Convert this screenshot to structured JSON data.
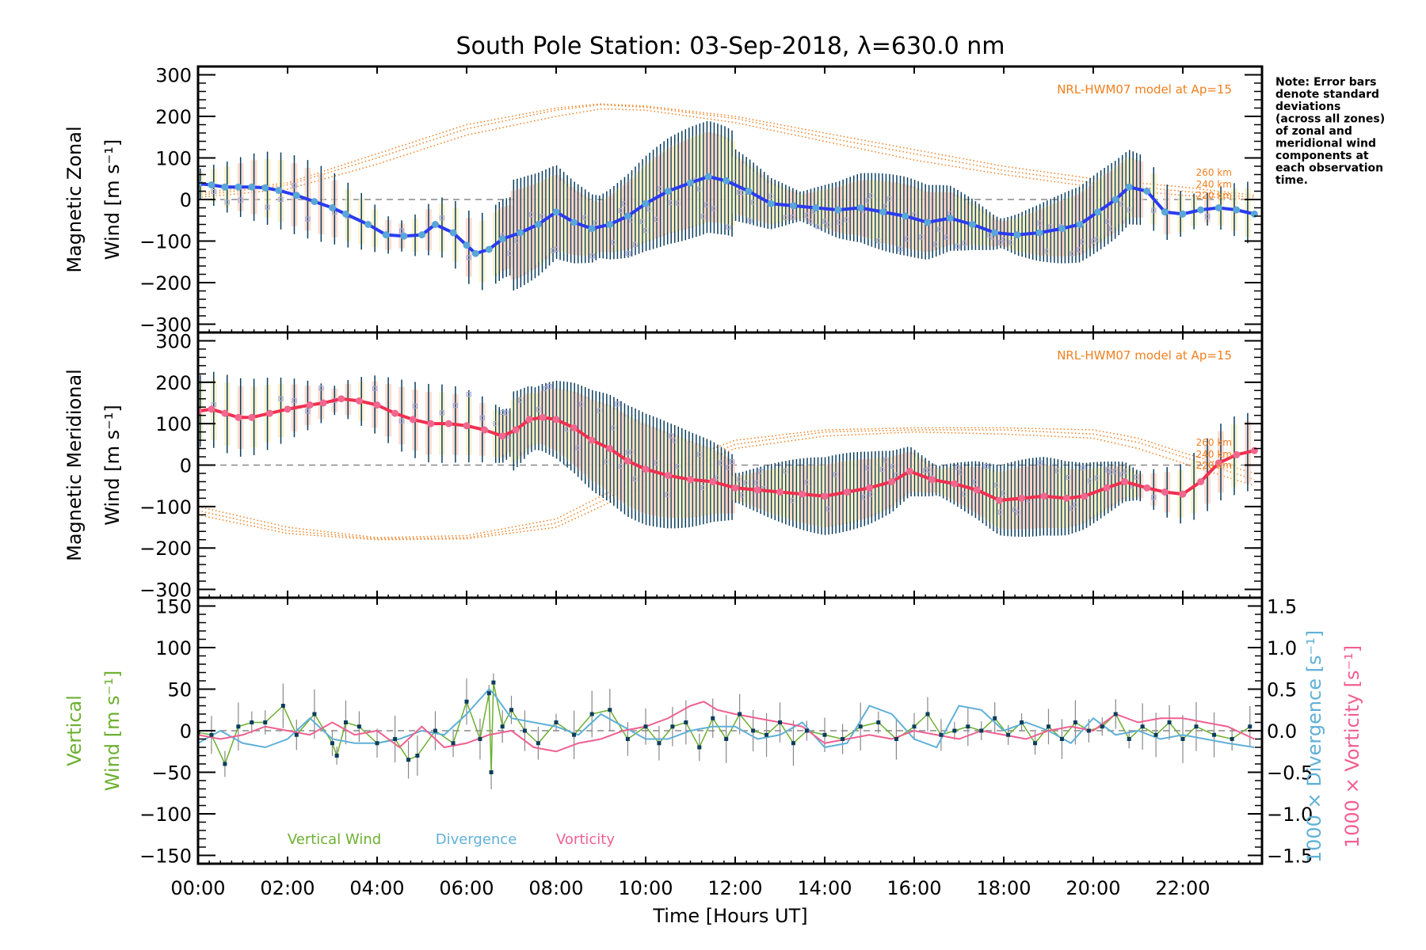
{
  "chart_data": [
    {
      "type": "line",
      "panel": "zonal",
      "title": "South Pole Station: 03-Sep-2018, λ=630.0 nm",
      "ylabel_line1": "Magnetic Zonal",
      "ylabel_line2": "Wind [m s⁻¹]",
      "ylim": [
        -320,
        320
      ],
      "yticks": [
        300,
        200,
        100,
        0,
        -100,
        -200,
        -300
      ],
      "model_label": "NRL-HWM07 model at Ap=15",
      "altitude_labels": [
        "260 km",
        "240 km",
        "220 km"
      ],
      "series": [
        {
          "name": "Magnetic Zonal Wind (mean)",
          "color": "#2a3cf0",
          "marker_color": "#5aa6d8",
          "x": [
            0,
            0.3,
            0.6,
            0.9,
            1.2,
            1.5,
            1.8,
            2.2,
            2.6,
            3.0,
            3.3,
            3.8,
            4.2,
            4.6,
            5.0,
            5.3,
            5.7,
            6.0,
            6.2,
            6.5,
            6.8,
            7.2,
            7.6,
            8.0,
            8.4,
            8.8,
            9.2,
            9.6,
            10.0,
            10.5,
            11.0,
            11.4,
            11.8,
            12.3,
            12.8,
            13.3,
            13.8,
            14.3,
            14.8,
            15.3,
            15.8,
            16.3,
            16.8,
            17.3,
            17.8,
            18.3,
            18.8,
            19.3,
            19.7,
            20.1,
            20.5,
            20.8,
            21.2,
            21.6,
            22.0,
            22.4,
            22.8,
            23.2,
            23.6
          ],
          "y": [
            38,
            35,
            30,
            30,
            30,
            28,
            22,
            10,
            -5,
            -20,
            -35,
            -60,
            -85,
            -88,
            -85,
            -60,
            -80,
            -110,
            -130,
            -120,
            -95,
            -80,
            -60,
            -30,
            -55,
            -70,
            -60,
            -40,
            -10,
            20,
            40,
            55,
            45,
            20,
            -10,
            -15,
            -20,
            -25,
            -20,
            -30,
            -40,
            -55,
            -45,
            -60,
            -80,
            -85,
            -80,
            -70,
            -60,
            -30,
            0,
            30,
            20,
            -30,
            -35,
            -25,
            -20,
            -25,
            -35
          ]
        },
        {
          "name": "NRL-HWM07 260 km",
          "color": "#f08020",
          "x": [
            0,
            2,
            4,
            6,
            8,
            9,
            10,
            12,
            14,
            16,
            18,
            20,
            22,
            23.6
          ],
          "y": [
            15,
            40,
            110,
            180,
            220,
            230,
            225,
            200,
            160,
            120,
            80,
            50,
            30,
            10
          ]
        },
        {
          "name": "NRL-HWM07 240 km",
          "color": "#f08020",
          "x": [
            0,
            2,
            4,
            6,
            8,
            9,
            10,
            12,
            14,
            16,
            18,
            20,
            22,
            23.6
          ],
          "y": [
            10,
            35,
            100,
            170,
            215,
            228,
            222,
            195,
            150,
            110,
            70,
            40,
            20,
            5
          ]
        },
        {
          "name": "NRL-HWM07 220 km",
          "color": "#f08020",
          "x": [
            0,
            2,
            4,
            6,
            8,
            9,
            10,
            12,
            14,
            16,
            18,
            20,
            22,
            23.6
          ],
          "y": [
            5,
            25,
            85,
            155,
            200,
            218,
            215,
            185,
            140,
            95,
            60,
            30,
            10,
            0
          ]
        }
      ]
    },
    {
      "type": "line",
      "panel": "meridional",
      "ylabel_line1": "Magnetic Meridional",
      "ylabel_line2": "Wind [m s⁻¹]",
      "ylim": [
        -320,
        320
      ],
      "yticks": [
        300,
        200,
        100,
        0,
        -100,
        -200,
        -300
      ],
      "model_label": "NRL-HWM07 model at Ap=15",
      "altitude_labels": [
        "260 km",
        "240 km",
        "220 km"
      ],
      "series": [
        {
          "name": "Magnetic Meridional Wind (mean)",
          "color": "#f03050",
          "marker_color": "#f06890",
          "x": [
            0,
            0.3,
            0.6,
            0.9,
            1.2,
            1.6,
            2.0,
            2.5,
            2.8,
            3.2,
            3.6,
            4.0,
            4.4,
            4.8,
            5.2,
            5.6,
            6.0,
            6.4,
            6.8,
            7.1,
            7.4,
            7.7,
            8.0,
            8.4,
            8.8,
            9.2,
            9.6,
            10.0,
            10.5,
            11.0,
            11.5,
            12.0,
            12.5,
            13.0,
            13.5,
            14.0,
            14.5,
            15.0,
            15.5,
            15.9,
            16.4,
            16.9,
            17.4,
            17.9,
            18.4,
            18.9,
            19.4,
            19.8,
            20.3,
            20.7,
            21.2,
            21.6,
            22.0,
            22.4,
            22.8,
            23.2,
            23.6
          ],
          "y": [
            130,
            135,
            125,
            115,
            115,
            125,
            135,
            145,
            150,
            160,
            155,
            145,
            125,
            110,
            100,
            100,
            95,
            85,
            70,
            85,
            110,
            115,
            110,
            90,
            60,
            40,
            10,
            -10,
            -25,
            -35,
            -40,
            -55,
            -60,
            -65,
            -70,
            -75,
            -65,
            -55,
            -40,
            -15,
            -35,
            -45,
            -60,
            -85,
            -80,
            -75,
            -80,
            -75,
            -55,
            -40,
            -55,
            -65,
            -70,
            -40,
            5,
            25,
            35
          ]
        },
        {
          "name": "NRL-HWM07 260 km",
          "color": "#f08020",
          "x": [
            0,
            2,
            4,
            6,
            8,
            10,
            12,
            14,
            16,
            18,
            20,
            21,
            22,
            23.6
          ],
          "y": [
            -100,
            -150,
            -175,
            -170,
            -130,
            -20,
            60,
            85,
            90,
            90,
            85,
            65,
            30,
            -20
          ]
        },
        {
          "name": "NRL-HWM07 240 km",
          "color": "#f08020",
          "x": [
            0,
            2,
            4,
            6,
            8,
            10,
            12,
            14,
            16,
            18,
            20,
            21,
            22,
            23.6
          ],
          "y": [
            -110,
            -158,
            -178,
            -175,
            -140,
            -35,
            50,
            80,
            85,
            85,
            75,
            55,
            20,
            -35
          ]
        },
        {
          "name": "NRL-HWM07 220 km",
          "color": "#f08020",
          "x": [
            0,
            2,
            4,
            6,
            8,
            10,
            12,
            14,
            16,
            18,
            20,
            21,
            22,
            23.6
          ],
          "y": [
            -120,
            -165,
            -180,
            -178,
            -150,
            -50,
            40,
            70,
            80,
            75,
            65,
            40,
            5,
            -50
          ]
        }
      ]
    },
    {
      "type": "line",
      "panel": "vertical",
      "ylabel_line1": "Vertical",
      "ylabel_line2": "Wind [m s⁻¹]",
      "ylim": [
        -160,
        160
      ],
      "yticks": [
        150,
        100,
        50,
        0,
        -50,
        -100,
        -150
      ],
      "y2label_div": "1000 × Divergence [s⁻¹]",
      "y2label_vort": "1000 × Vorticity [s⁻¹]",
      "y2lim": [
        -1.6,
        1.6
      ],
      "y2ticks": [
        "1.5",
        "1.0",
        "0.5",
        "0.0",
        "−0.5",
        "−1.0",
        "−1.5"
      ],
      "legend": [
        {
          "label": "Vertical Wind",
          "color": "#6cb030"
        },
        {
          "label": "Divergence",
          "color": "#60b0d8"
        },
        {
          "label": "Vorticity",
          "color": "#f06090"
        }
      ],
      "series": [
        {
          "name": "Vertical Wind",
          "color": "#6cb030",
          "x": [
            0,
            0.3,
            0.6,
            0.9,
            1.2,
            1.5,
            1.9,
            2.2,
            2.6,
            3.0,
            3.1,
            3.3,
            3.6,
            4.0,
            4.4,
            4.7,
            4.9,
            5.3,
            5.7,
            6.0,
            6.3,
            6.5,
            6.55,
            6.6,
            6.8,
            7.0,
            7.3,
            7.6,
            8.0,
            8.4,
            8.8,
            9.2,
            9.6,
            10.0,
            10.3,
            10.6,
            10.9,
            11.2,
            11.5,
            11.8,
            12.1,
            12.4,
            12.7,
            13.0,
            13.3,
            13.6,
            14.0,
            14.4,
            14.8,
            15.2,
            15.6,
            16.0,
            16.3,
            16.6,
            16.9,
            17.2,
            17.5,
            17.8,
            18.1,
            18.4,
            18.7,
            19.0,
            19.3,
            19.6,
            19.9,
            20.2,
            20.5,
            20.8,
            21.1,
            21.4,
            21.7,
            22.0,
            22.3,
            22.7,
            23.1,
            23.5
          ],
          "y": [
            -2,
            -5,
            -40,
            5,
            10,
            10,
            30,
            -5,
            20,
            -15,
            -30,
            10,
            5,
            -15,
            -10,
            -35,
            -30,
            0,
            -15,
            35,
            -10,
            45,
            -50,
            58,
            5,
            25,
            0,
            -15,
            10,
            -5,
            20,
            25,
            -10,
            5,
            -15,
            5,
            10,
            -20,
            15,
            -10,
            20,
            0,
            -5,
            10,
            -15,
            0,
            -5,
            -10,
            5,
            10,
            -10,
            5,
            20,
            -5,
            0,
            5,
            0,
            15,
            -5,
            10,
            -15,
            5,
            -10,
            10,
            0,
            5,
            20,
            -10,
            5,
            -5,
            10,
            -10,
            5,
            -5,
            -10,
            5
          ]
        },
        {
          "name": "Divergence (×1000)",
          "color": "#60b0d8",
          "axis": "right",
          "x": [
            0,
            0.5,
            1.0,
            1.5,
            2.0,
            2.5,
            3.0,
            3.5,
            4.0,
            4.5,
            5.0,
            5.5,
            6.0,
            6.5,
            6.6,
            7.0,
            7.5,
            8.0,
            8.5,
            9.0,
            9.5,
            10.0,
            10.5,
            11.0,
            11.5,
            12.0,
            12.5,
            13.0,
            13.5,
            14.0,
            14.5,
            15.0,
            15.5,
            16.0,
            16.5,
            17.0,
            17.5,
            18.0,
            18.5,
            19.0,
            19.5,
            20.0,
            20.5,
            21.0,
            21.5,
            22.0,
            22.5,
            23.0,
            23.6
          ],
          "y": [
            -0.15,
            0,
            -0.15,
            -0.2,
            -0.1,
            0.15,
            -0.1,
            -0.15,
            -0.15,
            -0.1,
            0,
            -0.05,
            0.2,
            0.5,
            0.45,
            0.15,
            0.1,
            0.05,
            -0.05,
            0.2,
            0.05,
            -0.1,
            -0.1,
            0,
            0.05,
            0.05,
            -0.1,
            -0.05,
            0.1,
            -0.2,
            -0.15,
            0.3,
            0.2,
            -0.1,
            -0.2,
            0.3,
            0.25,
            0,
            0.1,
            0,
            -0.15,
            0.15,
            -0.05,
            0,
            -0.1,
            -0.05,
            -0.1,
            -0.15,
            -0.2
          ]
        },
        {
          "name": "Vorticity (×1000)",
          "color": "#f06090",
          "axis": "right",
          "x": [
            0,
            0.5,
            1.0,
            1.5,
            2.0,
            2.5,
            3.0,
            3.5,
            4.0,
            4.5,
            5.0,
            5.5,
            6.0,
            6.5,
            7.0,
            7.5,
            8.0,
            8.5,
            9.0,
            9.5,
            10.0,
            10.5,
            11.0,
            11.3,
            11.6,
            12.0,
            12.5,
            13.0,
            13.5,
            14.0,
            14.5,
            15.0,
            15.5,
            16.0,
            16.5,
            17.0,
            17.5,
            18.0,
            18.5,
            19.0,
            19.5,
            20.0,
            20.5,
            21.0,
            21.5,
            22.0,
            22.5,
            23.0,
            23.6
          ],
          "y": [
            -0.05,
            -0.1,
            -0.05,
            0.05,
            0,
            -0.05,
            0.1,
            -0.05,
            0,
            -0.2,
            0.05,
            -0.2,
            -0.15,
            -0.05,
            0,
            -0.2,
            -0.25,
            -0.15,
            -0.1,
            0,
            0.05,
            0.15,
            0.3,
            0.35,
            0.25,
            0.2,
            0.15,
            0.1,
            0.05,
            -0.15,
            -0.1,
            -0.05,
            -0.1,
            0,
            -0.05,
            -0.1,
            0,
            -0.05,
            -0.1,
            0,
            0.05,
            0,
            0.2,
            0.1,
            0.15,
            0.15,
            0.1,
            0.05,
            -0.1
          ]
        }
      ]
    }
  ],
  "x_axis": {
    "label": "Time [Hours UT]",
    "xlim_hours": [
      0,
      23.77
    ],
    "ticks": [
      {
        "h": 0,
        "label": "00:00"
      },
      {
        "h": 2,
        "label": "02:00"
      },
      {
        "h": 4,
        "label": "04:00"
      },
      {
        "h": 6,
        "label": "06:00"
      },
      {
        "h": 8,
        "label": "08:00"
      },
      {
        "h": 10,
        "label": "10:00"
      },
      {
        "h": 12,
        "label": "12:00"
      },
      {
        "h": 14,
        "label": "14:00"
      },
      {
        "h": 16,
        "label": "16:00"
      },
      {
        "h": 18,
        "label": "18:00"
      },
      {
        "h": 20,
        "label": "20:00"
      },
      {
        "h": 22,
        "label": "22:00"
      }
    ]
  },
  "note": [
    "Note: Error bars",
    "denote standard",
    "deviations",
    "(across all zones)",
    "of zonal and",
    "meridional wind",
    "components at",
    "each observation",
    "time."
  ]
}
